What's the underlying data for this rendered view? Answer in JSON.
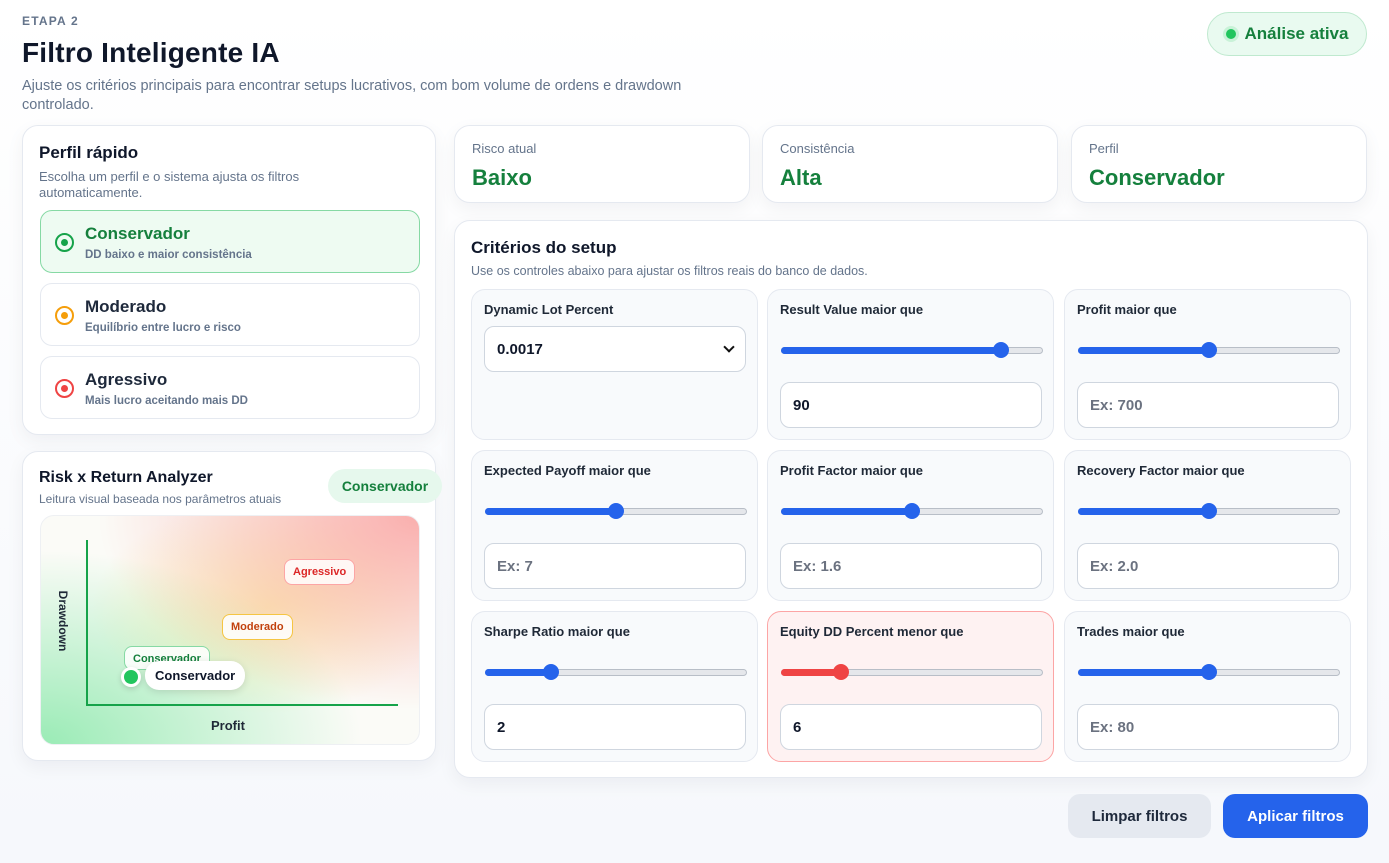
{
  "header": {
    "step": "ETAPA 2",
    "title": "Filtro Inteligente IA",
    "subtitle": "Ajuste os critérios principais para encontrar setups lucrativos, com bom volume de ordens e drawdown controlado."
  },
  "status_badge": "Análise ativa",
  "quick_profile": {
    "title": "Perfil rápido",
    "subtitle": "Escolha um perfil e o sistema ajusta os filtros automaticamente.",
    "options": [
      {
        "name": "Conservador",
        "desc": "DD baixo e maior consistência",
        "color": "#16a34a",
        "selected": true
      },
      {
        "name": "Moderado",
        "desc": "Equilíbrio entre lucro e risco",
        "color": "#f59e0b",
        "selected": false
      },
      {
        "name": "Agressivo",
        "desc": "Mais lucro aceitando mais DD",
        "color": "#ef4444",
        "selected": false
      }
    ]
  },
  "analyzer": {
    "title": "Risk x Return Analyzer",
    "subtitle": "Leitura visual baseada nos parâmetros atuais",
    "badge": "Conservador",
    "y_axis": "Drawdown",
    "x_axis": "Profit",
    "zones": {
      "aggressive": "Agressivo",
      "moderate": "Moderado",
      "conservative": "Conservador"
    },
    "current": "Conservador"
  },
  "stats": [
    {
      "label": "Risco atual",
      "value": "Baixo"
    },
    {
      "label": "Consistência",
      "value": "Alta"
    },
    {
      "label": "Perfil",
      "value": "Conservador"
    }
  ],
  "criteria": {
    "title": "Critérios do setup",
    "subtitle": "Use os controles abaixo para ajustar os filtros reais do banco de dados.",
    "dynamic_lot": {
      "label": "Dynamic Lot Percent",
      "value": "0.0017"
    },
    "items": [
      {
        "label": "Result Value maior que",
        "slider": 0.84,
        "value": "90",
        "placeholder": ""
      },
      {
        "label": "Profit maior que",
        "slider": 0.5,
        "value": "",
        "placeholder": "Ex: 700"
      },
      {
        "label": "Expected Payoff maior que",
        "slider": 0.5,
        "value": "",
        "placeholder": "Ex: 7"
      },
      {
        "label": "Profit Factor maior que",
        "slider": 0.5,
        "value": "",
        "placeholder": "Ex: 1.6"
      },
      {
        "label": "Recovery Factor maior que",
        "slider": 0.5,
        "value": "",
        "placeholder": "Ex: 2.0"
      },
      {
        "label": "Sharpe Ratio maior que",
        "slider": 0.25,
        "value": "2",
        "placeholder": ""
      },
      {
        "label": "Equity DD Percent menor que",
        "slider": 0.23,
        "value": "6",
        "placeholder": ""
      },
      {
        "label": "Trades maior que",
        "slider": 0.5,
        "value": "",
        "placeholder": "Ex: 80"
      }
    ]
  },
  "actions": {
    "clear": "Limpar filtros",
    "apply": "Aplicar filtros"
  }
}
